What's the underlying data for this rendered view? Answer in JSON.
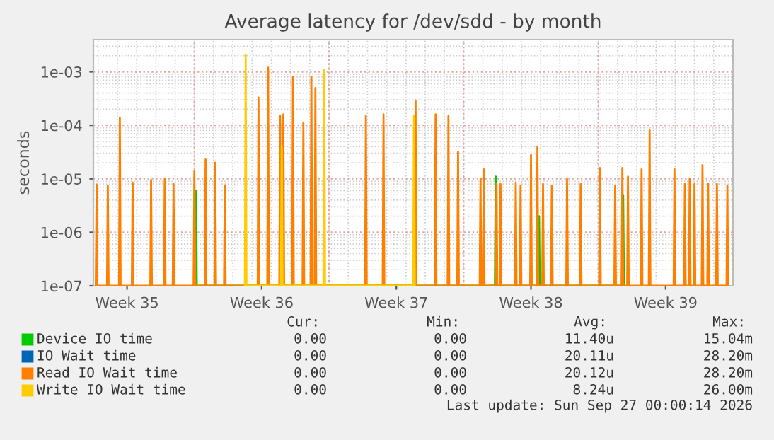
{
  "chart_data": {
    "type": "line",
    "title": "Average latency for /dev/sdd - by month",
    "ylabel": "seconds",
    "log": true,
    "grid": true,
    "legend": "bottom",
    "line_style": "solid",
    "xlim": [
      "2026-08-24T18:00",
      "2026-09-27T00:00"
    ],
    "xticks": [
      {
        "value": "2026-08-26T12:00",
        "label": "Week 35"
      },
      {
        "value": "2026-09-02T12:00",
        "label": "Week 36"
      },
      {
        "value": "2026-09-09T12:00",
        "label": "Week 37"
      },
      {
        "value": "2026-09-16T12:00",
        "label": "Week 38"
      },
      {
        "value": "2026-09-23T12:00",
        "label": "Week 39"
      }
    ],
    "ylim": [
      1e-07,
      0.004
    ],
    "yticks": [
      {
        "value": 1e-07,
        "label": "1e-07"
      },
      {
        "value": 1e-06,
        "label": "1e-06"
      },
      {
        "value": 1e-05,
        "label": "1e-05"
      },
      {
        "value": 0.0001,
        "label": "1e-04"
      },
      {
        "value": 0.001,
        "label": "1e-03"
      }
    ],
    "ref_lines": [
      {
        "axis": "x",
        "value": "2026-08-30T00:00",
        "color": "#e6a3a3",
        "line_style": "dotted"
      },
      {
        "axis": "x",
        "value": "2026-09-06T00:00",
        "color": "#e6a3a3",
        "line_style": "dotted"
      },
      {
        "axis": "x",
        "value": "2026-09-13T00:00",
        "color": "#e6a3a3",
        "line_style": "dotted"
      },
      {
        "axis": "x",
        "value": "2026-09-20T00:00",
        "color": "#e6a3a3",
        "line_style": "dotted"
      }
    ],
    "series": [
      {
        "name": "Device IO time",
        "color": "#00cc00",
        "x": [
          "2026-08-30T01:00",
          "2026-08-30T02:00",
          "2026-08-30T03:00",
          "2026-09-14T15:00",
          "2026-09-14T16:00",
          "2026-09-14T17:00",
          "2026-09-16T21:00",
          "2026-09-16T22:00",
          "2026-09-16T23:00",
          "2026-09-21T06:00",
          "2026-09-21T07:00",
          "2026-09-21T08:00"
        ],
        "values": [
          1e-07,
          6e-06,
          1e-07,
          1e-07,
          1.1e-05,
          1e-07,
          1e-07,
          2e-06,
          1e-07,
          1e-07,
          5e-06,
          1e-07
        ]
      },
      {
        "name": "IO Wait time",
        "color": "#0066b3"
      },
      {
        "name": "Read IO Wait time",
        "color": "#ff8000",
        "x": [
          "2026-08-24T21:00",
          "2026-08-24T22:00",
          "2026-08-24T23:00",
          "2026-08-25T11:00",
          "2026-08-25T12:00",
          "2026-08-25T13:00",
          "2026-08-26T02:00",
          "2026-08-26T03:00",
          "2026-08-26T04:00",
          "2026-08-26T18:00",
          "2026-08-26T19:00",
          "2026-08-26T20:00",
          "2026-08-27T17:00",
          "2026-08-27T18:00",
          "2026-08-27T19:00",
          "2026-08-28T10:00",
          "2026-08-28T11:00",
          "2026-08-28T12:00",
          "2026-08-28T21:00",
          "2026-08-28T22:00",
          "2026-08-28T23:00",
          "2026-08-29T23:00",
          "2026-08-30T00:00",
          "2026-08-30T01:00",
          "2026-08-30T13:00",
          "2026-08-30T14:00",
          "2026-08-30T15:00",
          "2026-08-31T01:00",
          "2026-08-31T02:00",
          "2026-08-31T03:00",
          "2026-08-31T13:00",
          "2026-08-31T14:00",
          "2026-08-31T15:00",
          "2026-09-02T07:00",
          "2026-09-02T08:00",
          "2026-09-02T09:00",
          "2026-09-02T19:00",
          "2026-09-02T20:00",
          "2026-09-02T21:00",
          "2026-09-03T10:00",
          "2026-09-03T11:00",
          "2026-09-03T12:00",
          "2026-09-03T14:00",
          "2026-09-03T15:00",
          "2026-09-03T16:00",
          "2026-09-04T02:00",
          "2026-09-04T03:00",
          "2026-09-04T04:00",
          "2026-09-04T15:00",
          "2026-09-04T16:00",
          "2026-09-04T17:00",
          "2026-09-05T01:00",
          "2026-09-05T02:00",
          "2026-09-05T03:00",
          "2026-09-05T06:00",
          "2026-09-05T07:00",
          "2026-09-05T08:00",
          "2026-09-07T21:00",
          "2026-09-07T22:00",
          "2026-09-07T23:00",
          "2026-09-08T19:00",
          "2026-09-08T20:00",
          "2026-09-08T21:00",
          "2026-09-10T11:00",
          "2026-09-10T12:00",
          "2026-09-10T13:00",
          "2026-09-11T12:00",
          "2026-09-11T13:00",
          "2026-09-11T14:00",
          "2026-09-12T04:00",
          "2026-09-12T05:00",
          "2026-09-12T06:00",
          "2026-09-12T16:00",
          "2026-09-12T17:00",
          "2026-09-12T18:00",
          "2026-09-13T20:00",
          "2026-09-13T21:00",
          "2026-09-13T22:00",
          "2026-09-14T00:00",
          "2026-09-14T01:00",
          "2026-09-14T02:00",
          "2026-09-14T16:00",
          "2026-09-14T17:00",
          "2026-09-14T18:00",
          "2026-09-14T21:00",
          "2026-09-14T22:00",
          "2026-09-14T23:00",
          "2026-09-15T16:00",
          "2026-09-15T17:00",
          "2026-09-15T18:00",
          "2026-09-15T22:00",
          "2026-09-15T23:00",
          "2026-09-16T00:00",
          "2026-09-16T11:00",
          "2026-09-16T12:00",
          "2026-09-16T13:00",
          "2026-09-16T19:00",
          "2026-09-16T20:00",
          "2026-09-16T21:00",
          "2026-09-17T02:00",
          "2026-09-17T03:00",
          "2026-09-17T04:00",
          "2026-09-17T13:00",
          "2026-09-17T14:00",
          "2026-09-17T15:00",
          "2026-09-18T08:00",
          "2026-09-18T09:00",
          "2026-09-18T10:00",
          "2026-09-19T01:00",
          "2026-09-19T02:00",
          "2026-09-19T03:00",
          "2026-09-20T01:00",
          "2026-09-20T02:00",
          "2026-09-20T03:00",
          "2026-09-20T20:00",
          "2026-09-20T21:00",
          "2026-09-20T22:00",
          "2026-09-21T05:00",
          "2026-09-21T06:00",
          "2026-09-21T07:00",
          "2026-09-21T12:00",
          "2026-09-21T13:00",
          "2026-09-21T14:00",
          "2026-09-22T05:00",
          "2026-09-22T06:00",
          "2026-09-22T07:00",
          "2026-09-22T15:00",
          "2026-09-22T16:00",
          "2026-09-22T17:00",
          "2026-09-23T22:00",
          "2026-09-23T23:00",
          "2026-09-24T00:00",
          "2026-09-24T11:00",
          "2026-09-24T12:00",
          "2026-09-24T13:00",
          "2026-09-24T17:00",
          "2026-09-24T18:00",
          "2026-09-24T19:00",
          "2026-09-24T23:00",
          "2026-09-25T00:00",
          "2026-09-25T01:00",
          "2026-09-25T09:00",
          "2026-09-25T10:00",
          "2026-09-25T11:00",
          "2026-09-25T16:00",
          "2026-09-25T17:00",
          "2026-09-25T18:00",
          "2026-09-26T03:00",
          "2026-09-26T04:00",
          "2026-09-26T05:00",
          "2026-09-26T16:00",
          "2026-09-26T17:00",
          "2026-09-26T18:00"
        ],
        "values": [
          1e-07,
          7.8e-06,
          1e-07,
          1e-07,
          7.5e-06,
          1e-07,
          1e-07,
          0.00014,
          1e-07,
          1e-07,
          8.5e-06,
          1e-07,
          1e-07,
          9.5e-06,
          1e-07,
          1e-07,
          1e-05,
          1e-07,
          1e-07,
          8e-06,
          1e-07,
          1e-07,
          1.4e-05,
          1e-07,
          1e-07,
          2.3e-05,
          1e-07,
          1e-07,
          2e-05,
          1e-07,
          1e-07,
          7.5e-06,
          1e-07,
          1e-07,
          0.00033,
          1e-07,
          1e-07,
          0.0012,
          1e-07,
          1e-07,
          0.00015,
          1e-07,
          1e-07,
          0.00016,
          1e-07,
          1e-07,
          0.0008,
          1e-07,
          1e-07,
          0.00011,
          1e-07,
          1e-07,
          0.0008,
          1e-07,
          1e-07,
          0.0005,
          1e-07,
          1e-07,
          0.00015,
          1e-07,
          1e-07,
          0.00016,
          1e-07,
          1e-07,
          0.00029,
          1e-07,
          1e-07,
          0.00016,
          1e-07,
          1e-07,
          0.00015,
          1e-07,
          1e-07,
          3.2e-05,
          1e-07,
          1e-07,
          1e-05,
          1e-07,
          1e-07,
          1.5e-05,
          1e-07,
          1e-07,
          8e-06,
          1e-07,
          1e-07,
          8e-06,
          1e-07,
          1e-07,
          8.5e-06,
          1e-07,
          1e-07,
          7.5e-06,
          1e-07,
          1e-07,
          2.8e-05,
          1e-07,
          1e-07,
          4e-05,
          1e-07,
          1e-07,
          8e-06,
          1e-07,
          1e-07,
          7.5e-06,
          1e-07,
          1e-07,
          1e-05,
          1e-07,
          1e-07,
          8e-06,
          1e-07,
          1e-07,
          1.6e-05,
          1e-07,
          1e-07,
          7.5e-06,
          1e-07,
          1e-07,
          1.6e-05,
          1e-07,
          1e-07,
          1.1e-05,
          1e-07,
          1e-07,
          1.5e-05,
          1e-07,
          1e-07,
          8e-05,
          1e-07,
          1e-07,
          1.5e-05,
          1e-07,
          1e-07,
          8e-06,
          1e-07,
          1e-07,
          1e-05,
          1e-07,
          1e-07,
          8e-06,
          1e-07,
          1e-07,
          1.8e-05,
          1e-07,
          1e-07,
          8e-06,
          1e-07,
          1e-07,
          8e-06,
          1e-07,
          1e-07,
          7.5e-06,
          1e-07
        ]
      },
      {
        "name": "Write IO Wait time",
        "color": "#ffcc00",
        "x": [
          "2026-09-01T15:00",
          "2026-09-01T16:00",
          "2026-09-01T17:00",
          "2026-09-03T12:00",
          "2026-09-03T13:00",
          "2026-09-03T14:00",
          "2026-09-05T17:00",
          "2026-09-05T18:00",
          "2026-09-05T19:00",
          "2026-09-10T09:00",
          "2026-09-10T10:00",
          "2026-09-10T11:00"
        ],
        "values": [
          1e-07,
          0.0021,
          1e-07,
          1e-07,
          4e-05,
          1e-07,
          1e-07,
          0.0011,
          1e-07,
          1e-07,
          0.00015,
          1e-07
        ]
      }
    ],
    "annotations": [
      "Cur:",
      "Min:",
      "Avg:",
      "Max:",
      "0.00",
      "0.00",
      "11.40u",
      "15.04m",
      "0.00",
      "0.00",
      "20.11u",
      "28.20m",
      "0.00",
      "0.00",
      "20.12u",
      "28.20m",
      "0.00",
      "0.00",
      "8.24u",
      "26.00m",
      "Last update: Sun Sep 27 00:00:14 2026"
    ]
  }
}
